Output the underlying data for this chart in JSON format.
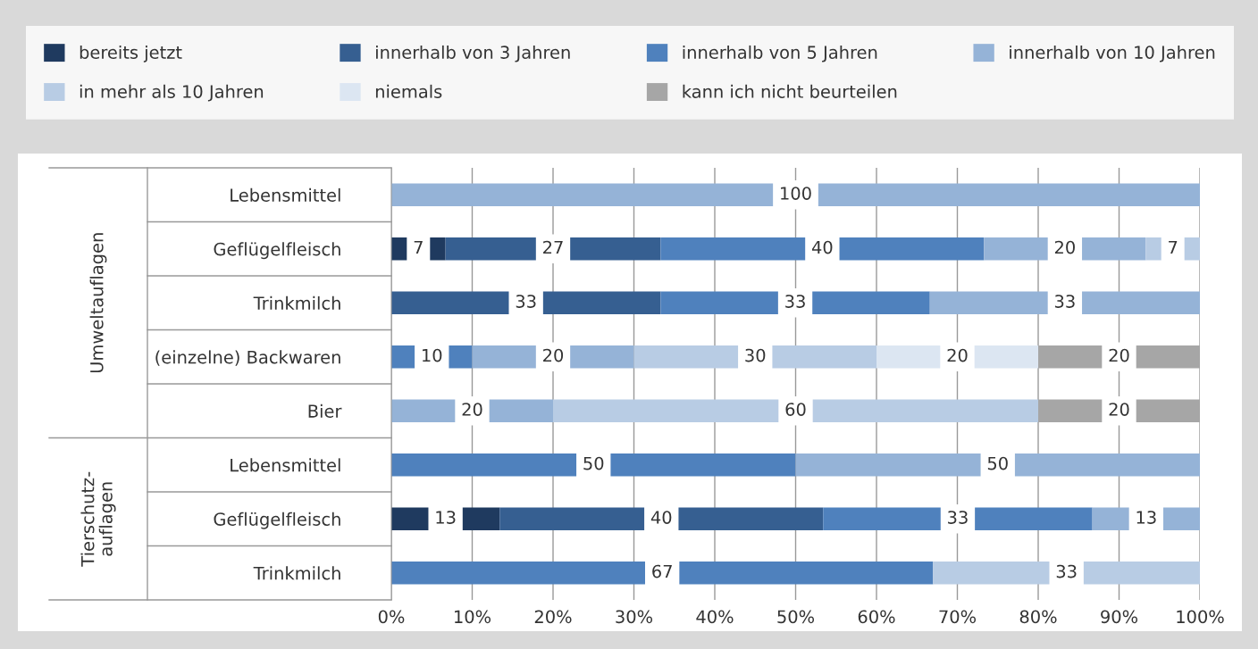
{
  "chart_data": {
    "type": "bar",
    "orientation": "horizontal",
    "stacked": true,
    "grid": "x",
    "legend": "top",
    "categories": [
      "Lebensmittel",
      "Geflügelfleisch",
      "Trinkmilch",
      "(einzelne) Backwaren",
      "Bier",
      "Lebensmittel",
      "Geflügelfleisch",
      "Trinkmilch"
    ],
    "series": [
      {
        "name": "bereits jetzt",
        "color": "#1f3a5f",
        "values": [
          null,
          6.7,
          null,
          null,
          null,
          null,
          13.4,
          null
        ],
        "value_labels": [
          null,
          "7",
          null,
          null,
          null,
          null,
          "13",
          null
        ]
      },
      {
        "name": "innerhalb von 3 Jahren",
        "color": "#365f91",
        "values": [
          null,
          26.6,
          33.3,
          null,
          null,
          null,
          40,
          null
        ],
        "value_labels": [
          null,
          "27",
          "33",
          null,
          null,
          null,
          "40",
          null
        ]
      },
      {
        "name": "innerhalb von 5 Jahren",
        "color": "#4f81bd",
        "values": [
          null,
          40,
          33.3,
          10,
          null,
          50,
          33.3,
          67
        ],
        "value_labels": [
          null,
          "40",
          "33",
          "10",
          null,
          "50",
          "33",
          "67"
        ]
      },
      {
        "name": "innerhalb von 10 Jahren",
        "color": "#95b3d7",
        "values": [
          100,
          20,
          33.4,
          20,
          20,
          50,
          13.3,
          null
        ],
        "value_labels": [
          "100",
          "20",
          "33",
          "20",
          "20",
          "50",
          "13",
          null
        ]
      },
      {
        "name": "in mehr als 10 Jahren",
        "color": "#b8cce4",
        "values": [
          null,
          6.7,
          null,
          30,
          60,
          null,
          null,
          33
        ],
        "value_labels": [
          null,
          "7",
          null,
          "30",
          "60",
          null,
          null,
          "33"
        ]
      },
      {
        "name": "niemals",
        "color": "#dce6f2",
        "values": [
          null,
          null,
          null,
          20,
          null,
          null,
          null,
          null
        ],
        "value_labels": [
          null,
          null,
          null,
          "20",
          null,
          null,
          null,
          null
        ]
      },
      {
        "name": "kann ich nicht beurteilen",
        "color": "#a6a6a6",
        "values": [
          null,
          null,
          null,
          20,
          20,
          null,
          null,
          null
        ],
        "value_labels": [
          null,
          null,
          null,
          "20",
          "20",
          null,
          null,
          null
        ]
      }
    ],
    "xlim": [
      0,
      100
    ],
    "xticks": [
      {
        "value": 0,
        "label": "0%"
      },
      {
        "value": 10,
        "label": "10%"
      },
      {
        "value": 20,
        "label": "20%"
      },
      {
        "value": 30,
        "label": "30%"
      },
      {
        "value": 40,
        "label": "40%"
      },
      {
        "value": 50,
        "label": "50%"
      },
      {
        "value": 60,
        "label": "60%"
      },
      {
        "value": 70,
        "label": "70%"
      },
      {
        "value": 80,
        "label": "80%"
      },
      {
        "value": 90,
        "label": "90%"
      },
      {
        "value": 100,
        "label": "100%"
      }
    ],
    "annotations": [
      "Umweltauflagen",
      "Tierschutz-\nauflagen"
    ]
  }
}
